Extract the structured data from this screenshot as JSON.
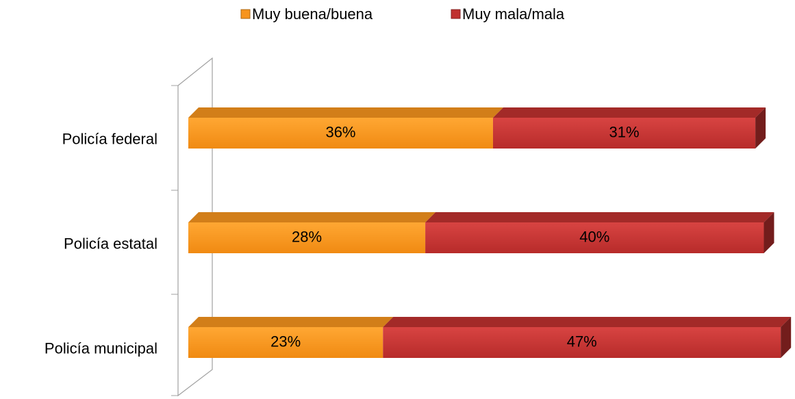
{
  "chart_data": {
    "type": "bar",
    "orientation": "horizontal",
    "stacked": true,
    "categories": [
      "Policía federal",
      "Policía estatal",
      "Policía municipal"
    ],
    "series": [
      {
        "name": "Muy buena/buena",
        "color": "#f7941d",
        "values": [
          36,
          28,
          23
        ],
        "value_labels": [
          "36%",
          "28%",
          "23%"
        ]
      },
      {
        "name": "Muy mala/mala",
        "color": "#c0312f",
        "values": [
          31,
          40,
          47
        ],
        "value_labels": [
          "31%",
          "40%",
          "47%"
        ]
      }
    ],
    "legend": "top"
  }
}
